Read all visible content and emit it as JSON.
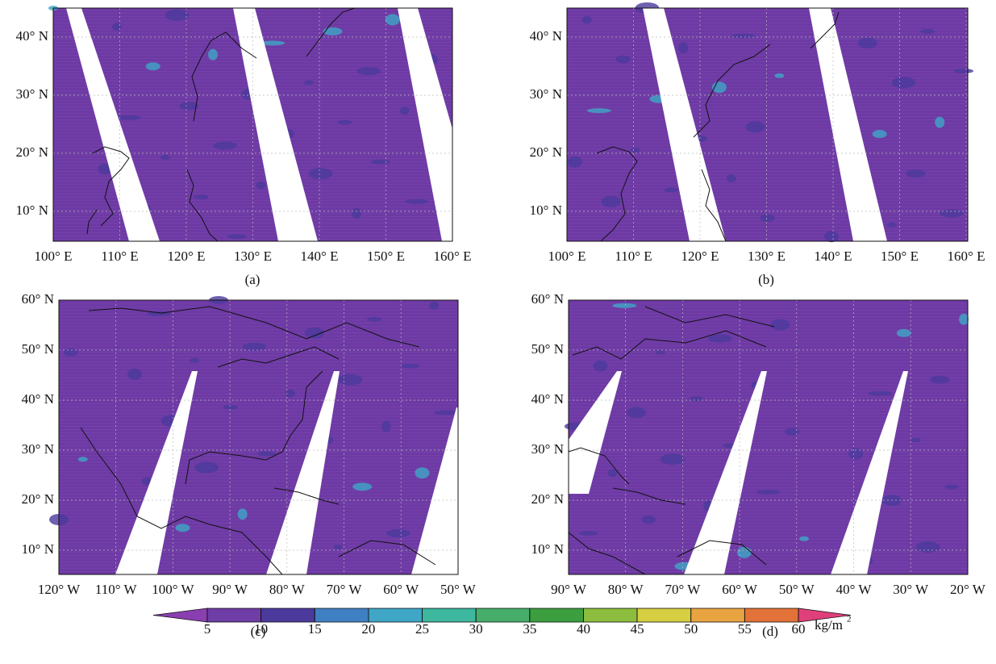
{
  "panels": [
    {
      "label": "(a)",
      "yticks": [
        "40° N",
        "30° N",
        "20° N",
        "10° N"
      ],
      "xticks": [
        "100° E",
        "110° E",
        "120° E",
        "130° E",
        "140° E",
        "150° E",
        "160° E"
      ]
    },
    {
      "label": "(b)",
      "yticks": [
        "40° N",
        "30° N",
        "20° N",
        "10° N"
      ],
      "xticks": [
        "100° E",
        "110° E",
        "120° E",
        "130° E",
        "140° E",
        "150° E",
        "160° E"
      ]
    },
    {
      "label": "(c)",
      "yticks": [
        "60° N",
        "50° N",
        "40° N",
        "30° N",
        "20° N",
        "10° N"
      ],
      "xticks": [
        "120° W",
        "110° W",
        "100° W",
        "90° W",
        "80° W",
        "70° W",
        "60° W",
        "50° W"
      ]
    },
    {
      "label": "(d)",
      "yticks": [
        "60° N",
        "50° N",
        "40° N",
        "30° N",
        "20° N",
        "10° N"
      ],
      "xticks": [
        "90° W",
        "80° W",
        "70° W",
        "60° W",
        "50° W",
        "40° W",
        "30° W",
        "20° W"
      ]
    }
  ],
  "colorbar": {
    "ticks": [
      5,
      10,
      15,
      20,
      25,
      30,
      35,
      40,
      45,
      50,
      55,
      60
    ],
    "colors": [
      "#8a3fb0",
      "#6f3da6",
      "#4b3a9c",
      "#3f80c2",
      "#3fa6c6",
      "#3db79e",
      "#46ad6a",
      "#3c9e3f",
      "#8cbd3e",
      "#d6cf42",
      "#e9a442",
      "#e27238",
      "#d34444",
      "#e0407a"
    ],
    "unit": "kg/m",
    "unit_sup": "2"
  }
}
